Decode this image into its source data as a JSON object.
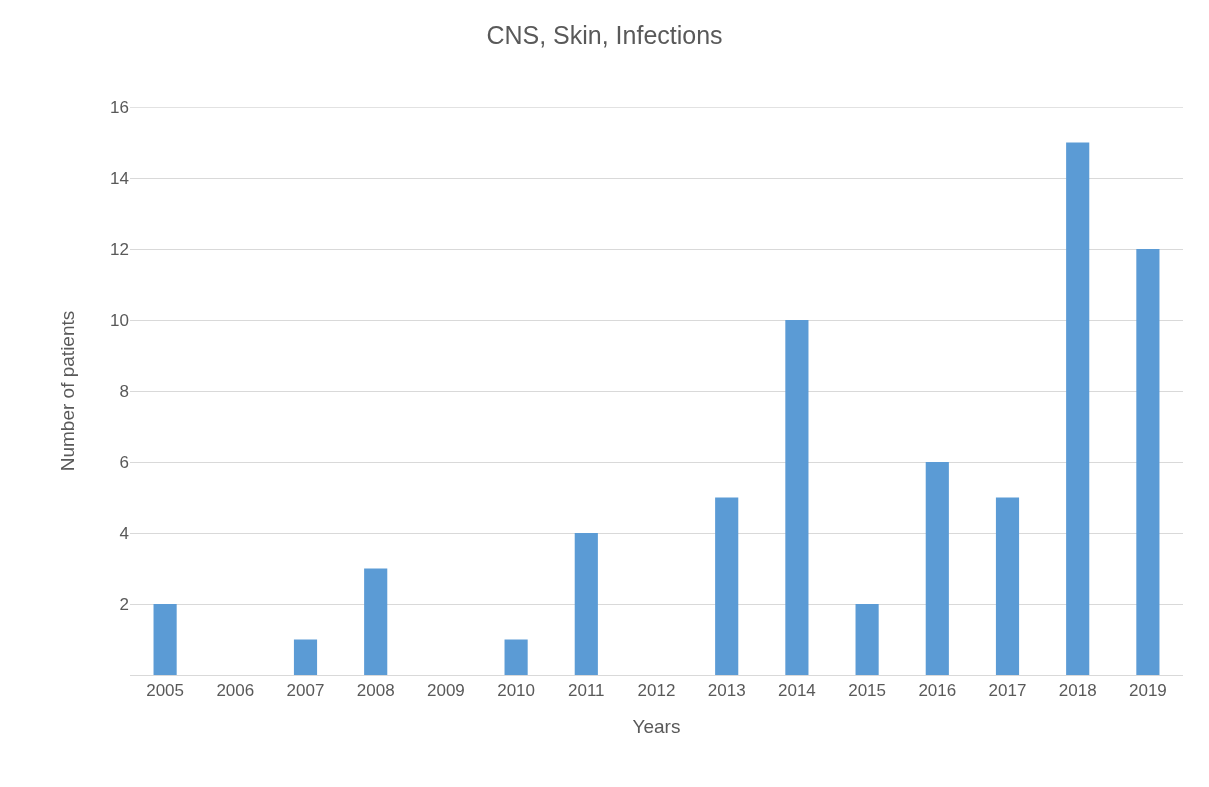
{
  "chart_data": {
    "type": "bar",
    "title": "CNS, Skin, Infections",
    "xlabel": "Years",
    "ylabel": "Number of patients",
    "categories": [
      "2005",
      "2006",
      "2007",
      "2008",
      "2009",
      "2010",
      "2011",
      "2012",
      "2013",
      "2014",
      "2015",
      "2016",
      "2017",
      "2018",
      "2019"
    ],
    "values": [
      2,
      0,
      1,
      3,
      0,
      1,
      4,
      0,
      5,
      10,
      2,
      6,
      5,
      15,
      12
    ],
    "color": "#5b9bd5",
    "ylim": [
      0,
      16
    ],
    "yticks": [
      {
        "value": 0,
        "label": null
      },
      2,
      4,
      6,
      8,
      10,
      12,
      14,
      16
    ],
    "grid": "y"
  }
}
